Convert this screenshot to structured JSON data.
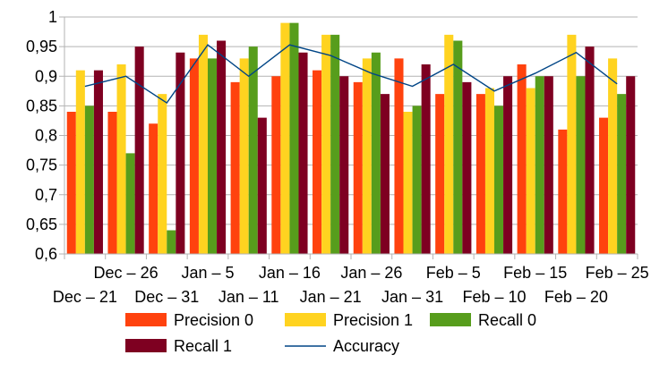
{
  "chart_data": {
    "type": "bar",
    "title": "",
    "xlabel": "",
    "ylabel": "",
    "ylim": [
      0.6,
      1.0
    ],
    "ytick_step": 0.05,
    "y_tick_labels": [
      "0,6",
      "0,65",
      "0,7",
      "0,75",
      "0,8",
      "0,85",
      "0,9",
      "0,95",
      "1"
    ],
    "categories": [
      "Dec – 21",
      "Dec – 26",
      "Dec – 31",
      "Jan – 5",
      "Jan – 11",
      "Jan – 16",
      "Jan – 21",
      "Jan – 26",
      "Jan – 31",
      "Feb – 5",
      "Feb – 10",
      "Feb – 15",
      "Feb – 20",
      "Feb – 25"
    ],
    "x_label_rows": {
      "top": [
        "Dec – 26",
        "Jan – 5",
        "Jan – 16",
        "Jan – 26",
        "Feb – 5",
        "Feb – 15",
        "Feb – 25"
      ],
      "bottom": [
        "Dec – 21",
        "Dec – 31",
        "Jan – 11",
        "Jan – 21",
        "Jan – 31",
        "Feb – 10",
        "Feb – 20"
      ]
    },
    "grid": true,
    "legend_position": "bottom",
    "series": [
      {
        "name": "Precision 0",
        "type": "bar",
        "color": "#ff420e",
        "values": [
          0.84,
          0.84,
          0.82,
          0.93,
          0.89,
          0.9,
          0.91,
          0.89,
          0.93,
          0.87,
          0.87,
          0.92,
          0.81,
          0.83
        ]
      },
      {
        "name": "Precision 1",
        "type": "bar",
        "color": "#ffd320",
        "values": [
          0.91,
          0.92,
          0.87,
          0.97,
          0.93,
          0.99,
          0.97,
          0.93,
          0.84,
          0.97,
          0.88,
          0.88,
          0.97,
          0.93
        ]
      },
      {
        "name": "Recall 0",
        "type": "bar",
        "color": "#579d1c",
        "values": [
          0.85,
          0.77,
          0.64,
          0.93,
          0.95,
          0.99,
          0.97,
          0.94,
          0.85,
          0.96,
          0.85,
          0.9,
          0.9,
          0.87
        ]
      },
      {
        "name": "Recall 1",
        "type": "bar",
        "color": "#7e0021",
        "values": [
          0.91,
          0.95,
          0.94,
          0.96,
          0.83,
          0.94,
          0.9,
          0.87,
          0.92,
          0.89,
          0.9,
          0.9,
          0.95,
          0.9
        ]
      },
      {
        "name": "Accuracy",
        "type": "line",
        "color": "#004586",
        "values": [
          0.883,
          0.9,
          0.855,
          0.953,
          0.9,
          0.953,
          0.935,
          0.905,
          0.883,
          0.92,
          0.875,
          0.905,
          0.94,
          0.887
        ]
      }
    ]
  }
}
